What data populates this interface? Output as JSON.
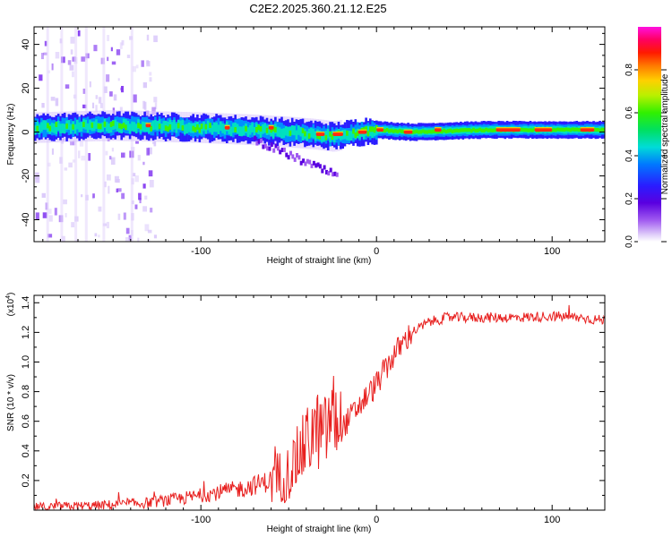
{
  "figure_title": "C2E2.2025.360.21.12.E25",
  "chart_data": [
    {
      "type": "heatmap",
      "title": "C2E2.2025.360.21.12.E25",
      "xlabel": "Height of straight line (km)",
      "ylabel": "Frequency (Hz)",
      "xlim": [
        -195,
        130
      ],
      "ylim": [
        -50,
        48
      ],
      "xticks": [
        -100,
        0,
        100
      ],
      "yticks": [
        -40,
        -20,
        0,
        20,
        40
      ],
      "colorbar": {
        "label": "Normalized spectral amplitude",
        "range": [
          0,
          1
        ],
        "ticks": [
          0.0,
          0.2,
          0.4,
          0.6,
          0.8
        ]
      },
      "ridge": {
        "description_points_x_km": [
          -195,
          -150,
          -100,
          -70,
          -50,
          -35,
          -25,
          -10,
          0,
          20,
          60,
          100,
          130
        ],
        "frequency_hz": [
          2,
          3,
          2,
          1,
          0,
          -1,
          -2,
          0,
          1,
          0,
          1,
          1,
          1
        ]
      }
    },
    {
      "type": "line",
      "xlabel": "Height of straight line (km)",
      "ylabel": "SNR (10 * v/v)",
      "y_multiplier_label": "(x10",
      "y_multiplier_exp": "4",
      "y_multiplier_close": ")",
      "xlim": [
        -195,
        130
      ],
      "ylim": [
        0.0,
        1.45
      ],
      "xticks": [
        -100,
        0,
        100
      ],
      "yticks": [
        0.2,
        0.4,
        0.6,
        0.8,
        1.0,
        1.2,
        1.4
      ],
      "series": [
        {
          "name": "SNR",
          "color": "#e8201f",
          "x_km": [
            -195,
            -160,
            -130,
            -110,
            -90,
            -75,
            -60,
            -50,
            -45,
            -40,
            -35,
            -30,
            -25,
            -20,
            -10,
            0,
            10,
            20,
            30,
            40,
            60,
            80,
            100,
            115,
            130
          ],
          "y_mean_x1e4": [
            0.02,
            0.03,
            0.05,
            0.08,
            0.12,
            0.15,
            0.2,
            0.25,
            0.35,
            0.45,
            0.55,
            0.5,
            0.65,
            0.55,
            0.7,
            0.85,
            1.05,
            1.2,
            1.27,
            1.3,
            1.3,
            1.3,
            1.31,
            1.3,
            1.28
          ]
        }
      ]
    }
  ]
}
